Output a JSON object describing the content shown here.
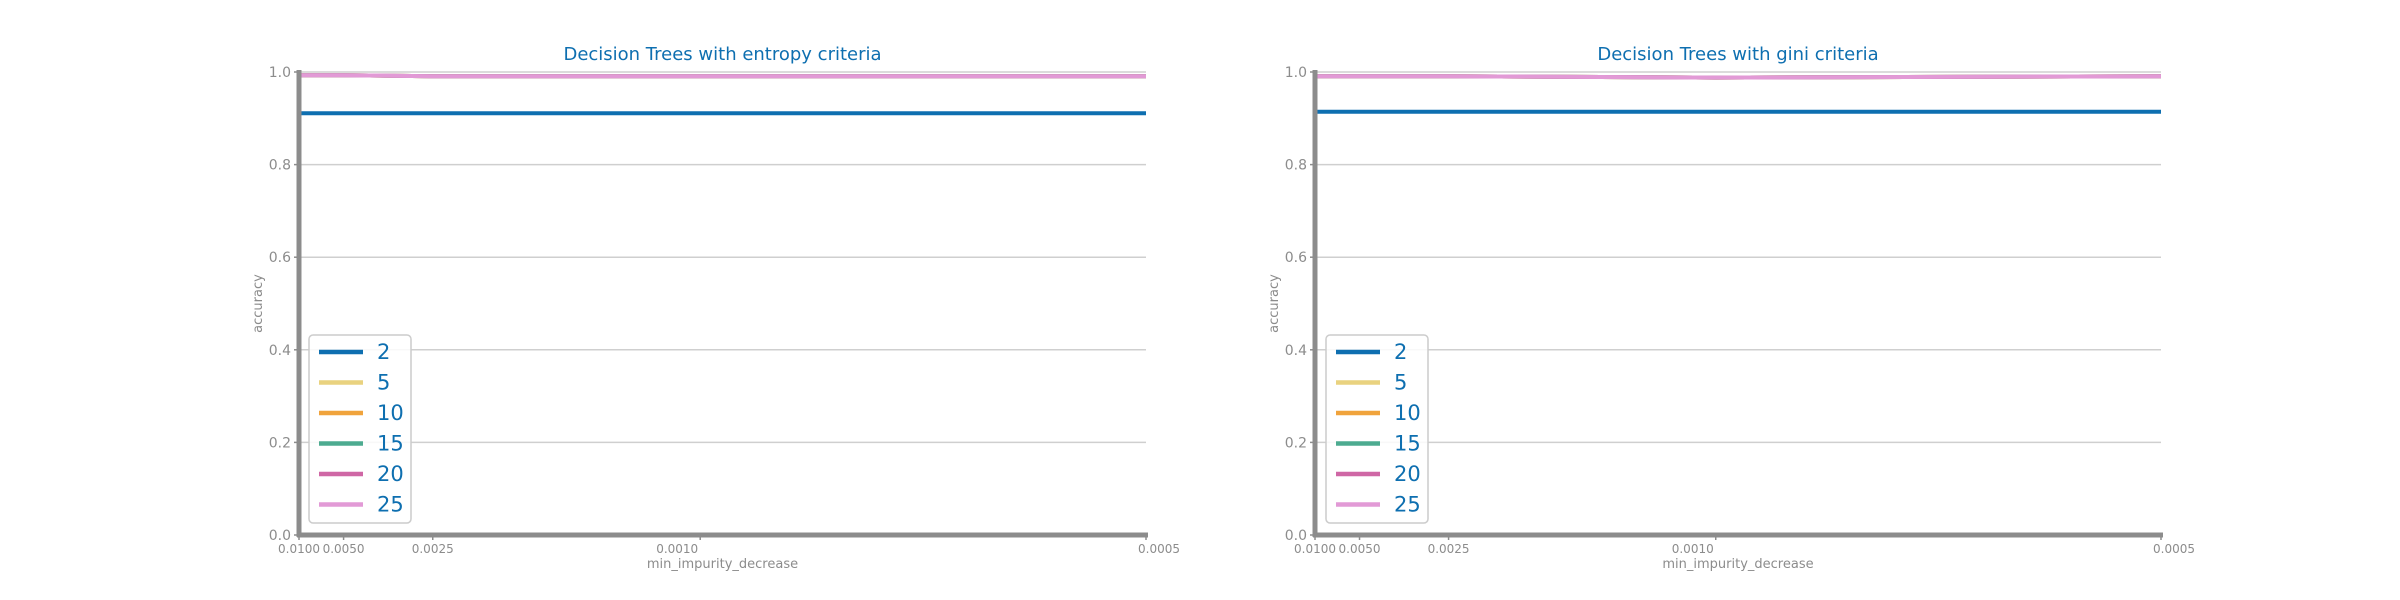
{
  "colors": {
    "2": "#0e6fb0",
    "5": "#e9d27f",
    "10": "#f0a33c",
    "15": "#4dab90",
    "20": "#cf67a5",
    "25": "#e29ad6",
    "axis": "#8c8c8c",
    "grid": "#cfcfcf"
  },
  "chart_data": [
    {
      "type": "line",
      "title": "Decision Trees with entropy criteria",
      "xlabel": "min_impurity_decrease",
      "ylabel": "accuracy",
      "x_scale": "reciprocal",
      "x": [
        0.01,
        0.005,
        0.0025,
        0.001,
        0.0005
      ],
      "x_ticks": [
        0.01,
        0.005,
        0.0025,
        0.001,
        0.0005
      ],
      "x_tick_labels": [
        "0.0100",
        "0.0050",
        "0.0025",
        "0.0010",
        "0.0005"
      ],
      "ylim": [
        0.0,
        1.0
      ],
      "y_ticks": [
        0.0,
        0.2,
        0.4,
        0.6,
        0.8,
        1.0
      ],
      "y_tick_labels": [
        "0.0",
        "0.2",
        "0.4",
        "0.6",
        "0.8",
        "1.0"
      ],
      "grid": "horizontal",
      "legend_position": "lower-left",
      "series": [
        {
          "name": "2",
          "values": [
            0.911,
            0.911,
            0.911,
            0.911,
            0.911
          ]
        },
        {
          "name": "5",
          "values": [
            0.993,
            0.993,
            0.991,
            0.991,
            0.991
          ]
        },
        {
          "name": "10",
          "values": [
            0.993,
            0.993,
            0.991,
            0.991,
            0.991
          ]
        },
        {
          "name": "15",
          "values": [
            0.993,
            0.993,
            0.991,
            0.991,
            0.991
          ]
        },
        {
          "name": "20",
          "values": [
            0.993,
            0.993,
            0.991,
            0.991,
            0.991
          ]
        },
        {
          "name": "25",
          "values": [
            0.993,
            0.993,
            0.991,
            0.991,
            0.991
          ]
        }
      ]
    },
    {
      "type": "line",
      "title": "Decision Trees with gini criteria",
      "xlabel": "min_impurity_decrease",
      "ylabel": "accuracy",
      "x_scale": "reciprocal",
      "x": [
        0.01,
        0.005,
        0.0025,
        0.001,
        0.0005
      ],
      "x_ticks": [
        0.01,
        0.005,
        0.0025,
        0.001,
        0.0005
      ],
      "x_tick_labels": [
        "0.0100",
        "0.0050",
        "0.0025",
        "0.0010",
        "0.0005"
      ],
      "ylim": [
        0.0,
        1.0
      ],
      "y_ticks": [
        0.0,
        0.2,
        0.4,
        0.6,
        0.8,
        1.0
      ],
      "y_tick_labels": [
        "0.0",
        "0.2",
        "0.4",
        "0.6",
        "0.8",
        "1.0"
      ],
      "grid": "horizontal",
      "legend_position": "lower-left",
      "series": [
        {
          "name": "2",
          "values": [
            0.914,
            0.914,
            0.914,
            0.914,
            0.914
          ]
        },
        {
          "name": "5",
          "values": [
            0.991,
            0.991,
            0.991,
            0.988,
            0.991
          ]
        },
        {
          "name": "10",
          "values": [
            0.991,
            0.991,
            0.991,
            0.988,
            0.991
          ]
        },
        {
          "name": "15",
          "values": [
            0.991,
            0.991,
            0.991,
            0.988,
            0.991
          ]
        },
        {
          "name": "20",
          "values": [
            0.991,
            0.991,
            0.991,
            0.988,
            0.991
          ]
        },
        {
          "name": "25",
          "values": [
            0.991,
            0.991,
            0.991,
            0.988,
            0.991
          ]
        }
      ]
    }
  ]
}
